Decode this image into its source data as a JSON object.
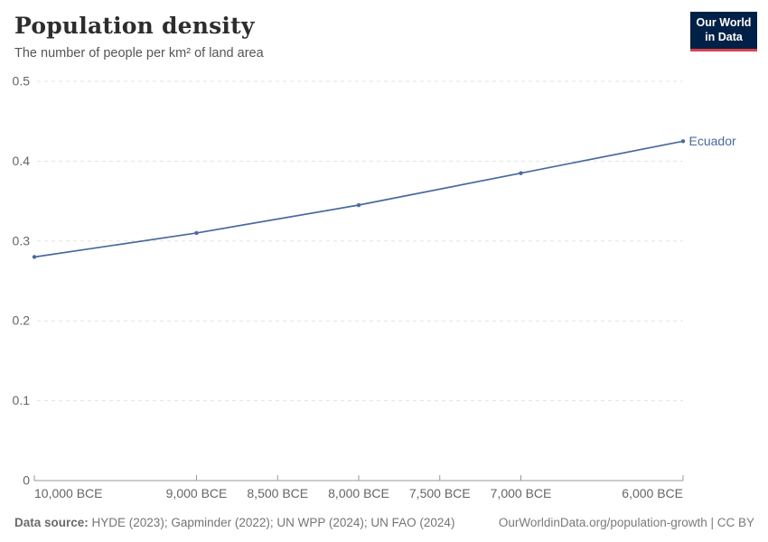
{
  "header": {
    "title": "Population density",
    "subtitle": "The number of people per km² of land area"
  },
  "logo": {
    "line1": "Our World",
    "line2": "in Data",
    "bg_color": "#002147",
    "bar_color": "#D8414D"
  },
  "chart_data": {
    "type": "line",
    "title": "Population density",
    "subtitle": "The number of people per km² of land area",
    "series": [
      {
        "name": "Ecuador",
        "x_years_bce": [
          10000,
          9000,
          8000,
          7000,
          6000
        ],
        "values": [
          0.28,
          0.31,
          0.345,
          0.385,
          0.425
        ]
      }
    ],
    "x_ticks": [
      {
        "year_bce": 10000,
        "label": "10,000 BCE"
      },
      {
        "year_bce": 9000,
        "label": "9,000 BCE"
      },
      {
        "year_bce": 8500,
        "label": "8,500 BCE"
      },
      {
        "year_bce": 8000,
        "label": "8,000 BCE"
      },
      {
        "year_bce": 7500,
        "label": "7,500 BCE"
      },
      {
        "year_bce": 7000,
        "label": "7,000 BCE"
      },
      {
        "year_bce": 6000,
        "label": "6,000 BCE"
      }
    ],
    "y_ticks": [
      {
        "value": 0,
        "label": "0"
      },
      {
        "value": 0.1,
        "label": "0.1"
      },
      {
        "value": 0.2,
        "label": "0.2"
      },
      {
        "value": 0.3,
        "label": "0.3"
      },
      {
        "value": 0.4,
        "label": "0.4"
      },
      {
        "value": 0.5,
        "label": "0.5"
      }
    ],
    "ylim": [
      0,
      0.5
    ],
    "xlim_years_bce": [
      10000,
      6000
    ],
    "grid": "horizontal-dashed",
    "legend_position": "end-of-line",
    "entity_label": "Ecuador",
    "line_color": "#49699F",
    "grid_color": "#e3e3e3",
    "axis_color": "#999999",
    "tick_label_color": "#666666"
  },
  "footer": {
    "source_label": "Data source:",
    "source_text": " HYDE (2023); Gapminder (2022); UN WPP (2024); UN FAO (2024)",
    "credit": "OurWorldinData.org/population-growth | CC BY"
  }
}
